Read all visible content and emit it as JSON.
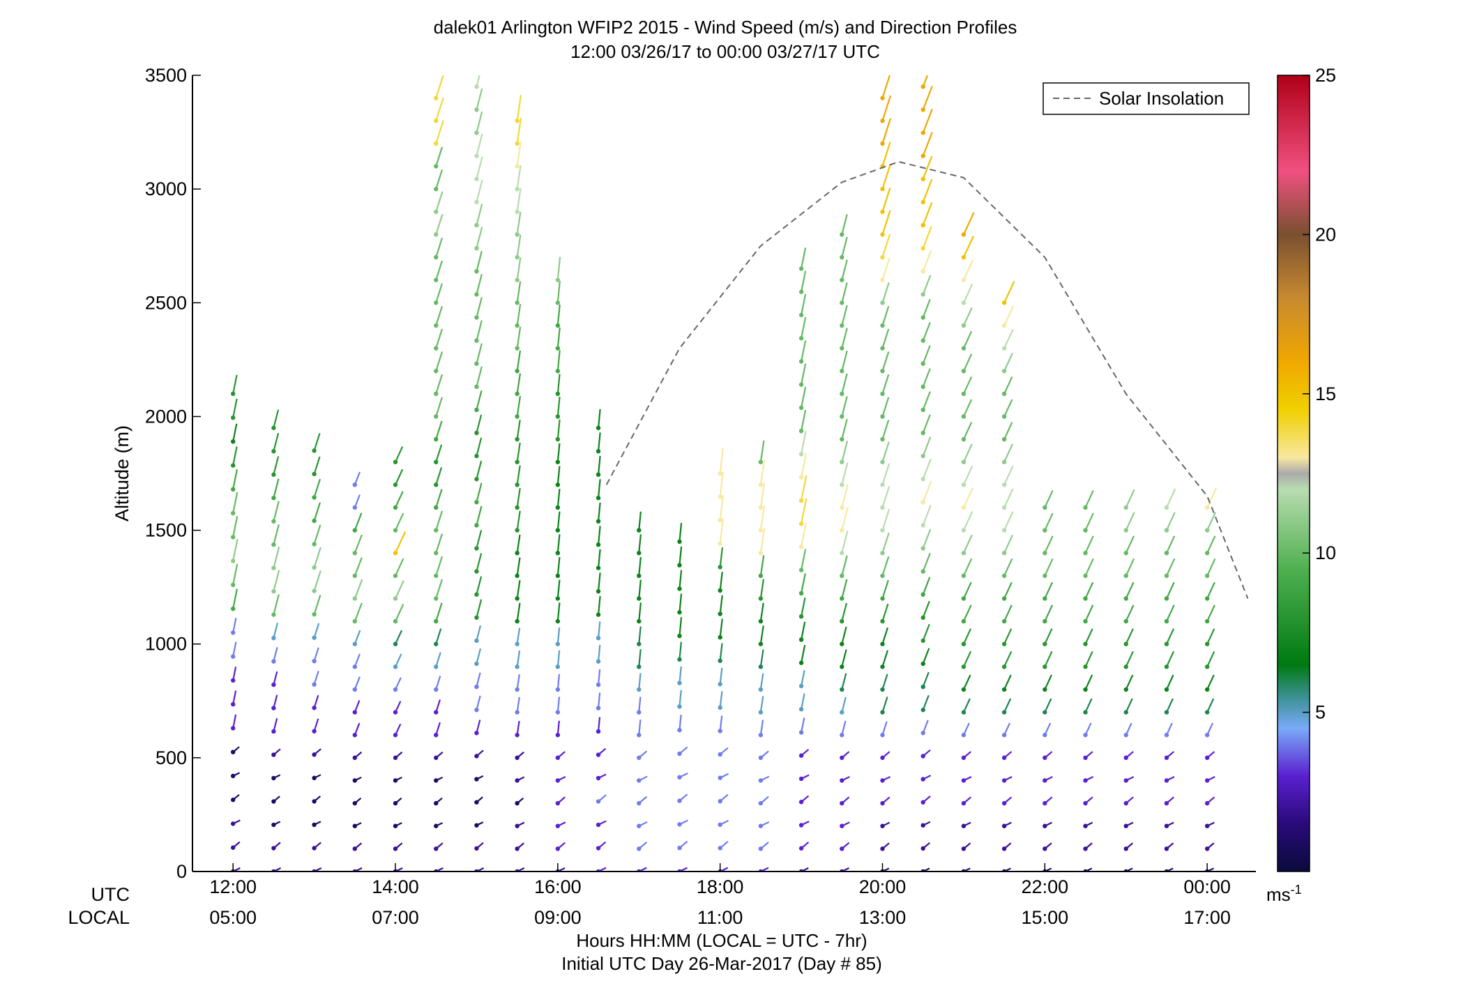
{
  "chart_data": {
    "type": "scatter",
    "title": "dalek01 Arlington WFIP2 2015 - Wind Speed (m/s) and Direction Profiles",
    "subtitle": "12:00 03/26/17 to 00:00 03/27/17  UTC",
    "xlabel": "Hours HH:MM  (LOCAL = UTC - 7hr)",
    "xlabel2": "Initial UTC Day 26-Mar-2017 (Day # 85)",
    "ylabel": "Altitude (m)",
    "x_row_labels": {
      "utc": "UTC",
      "local": "LOCAL"
    },
    "xlim": [
      11.5,
      24.6
    ],
    "ylim": [
      0,
      3500
    ],
    "x_ticks": [
      {
        "value": 12,
        "utc": "12:00",
        "local": "05:00"
      },
      {
        "value": 14,
        "utc": "14:00",
        "local": "07:00"
      },
      {
        "value": 16,
        "utc": "16:00",
        "local": "09:00"
      },
      {
        "value": 18,
        "utc": "18:00",
        "local": "11:00"
      },
      {
        "value": 20,
        "utc": "20:00",
        "local": "13:00"
      },
      {
        "value": 22,
        "utc": "22:00",
        "local": "15:00"
      },
      {
        "value": 24,
        "utc": "00:00",
        "local": "17:00"
      }
    ],
    "y_ticks": [
      {
        "value": 0,
        "label": "0"
      },
      {
        "value": 500,
        "label": "500"
      },
      {
        "value": 1000,
        "label": "1000"
      },
      {
        "value": 1500,
        "label": "1500"
      },
      {
        "value": 2000,
        "label": "2000"
      },
      {
        "value": 2500,
        "label": "2500"
      },
      {
        "value": 3000,
        "label": "3000"
      },
      {
        "value": 3500,
        "label": "3500"
      }
    ],
    "legend": {
      "entry": "Solar Insolation",
      "placement": "top-right"
    },
    "colorbar": {
      "range": [
        0,
        25
      ],
      "unit_label": "ms",
      "unit_exp": "-1",
      "ticks": [
        {
          "value": 5,
          "label": "5"
        },
        {
          "value": 10,
          "label": "10"
        },
        {
          "value": 15,
          "label": "15"
        },
        {
          "value": 20,
          "label": "20"
        },
        {
          "value": 25,
          "label": "25"
        }
      ],
      "stops": [
        {
          "value": 0,
          "color": "#0a0a3c"
        },
        {
          "value": 1.5,
          "color": "#2a0a7a"
        },
        {
          "value": 3,
          "color": "#5a20d0"
        },
        {
          "value": 4.5,
          "color": "#7aaaf8"
        },
        {
          "value": 5.5,
          "color": "#3a9090"
        },
        {
          "value": 6.5,
          "color": "#007a10"
        },
        {
          "value": 9.5,
          "color": "#50b050"
        },
        {
          "value": 12,
          "color": "#b8dcb0"
        },
        {
          "value": 12.5,
          "color": "#aaaaaa"
        },
        {
          "value": 13,
          "color": "#f8e8a0"
        },
        {
          "value": 14.5,
          "color": "#f0d000"
        },
        {
          "value": 16,
          "color": "#f0a800"
        },
        {
          "value": 18,
          "color": "#c88a30"
        },
        {
          "value": 20,
          "color": "#7a5030"
        },
        {
          "value": 22,
          "color": "#f05080"
        },
        {
          "value": 25,
          "color": "#b00018"
        }
      ]
    },
    "solar_insolation": {
      "style": "dashed",
      "color": "#666666",
      "points": [
        [
          16.6,
          1700
        ],
        [
          17.5,
          2300
        ],
        [
          18.5,
          2750
        ],
        [
          19.5,
          3030
        ],
        [
          20.2,
          3120
        ],
        [
          21.0,
          3050
        ],
        [
          22.0,
          2700
        ],
        [
          23.0,
          2100
        ],
        [
          24.0,
          1650
        ],
        [
          24.5,
          1200
        ]
      ]
    },
    "profiles": [
      {
        "t": 12.0,
        "top": 2100,
        "dir": 20,
        "speed": [
          2,
          2,
          2,
          1,
          1,
          1,
          3,
          3,
          3,
          4,
          4,
          9,
          10,
          11,
          10,
          10,
          9,
          8,
          7,
          8,
          8
        ]
      },
      {
        "t": 12.5,
        "top": 1950,
        "dir": 25,
        "speed": [
          2,
          2,
          1,
          1,
          1,
          2,
          3,
          3,
          3,
          4,
          5,
          10,
          11,
          11,
          10,
          10,
          9,
          8,
          8,
          8
        ]
      },
      {
        "t": 13.0,
        "top": 1850,
        "dir": 30,
        "speed": [
          2,
          2,
          1,
          1,
          1,
          2,
          3,
          3,
          4,
          4,
          5,
          10,
          11,
          11,
          10,
          9,
          9,
          8,
          8
        ]
      },
      {
        "t": 13.5,
        "top": 1700,
        "dir": 35,
        "speed": [
          2,
          2,
          1,
          1,
          1,
          2,
          3,
          3,
          4,
          4,
          5,
          10,
          11,
          10,
          10,
          9,
          4,
          4
        ]
      },
      {
        "t": 14.0,
        "top": 1800,
        "dir": 40,
        "speed": [
          2,
          2,
          1,
          1,
          1,
          2,
          3,
          3,
          4,
          5,
          6,
          10,
          11,
          10,
          15,
          10,
          9,
          8,
          8
        ]
      },
      {
        "t": 14.5,
        "top": 3400,
        "dir": 30,
        "speed": [
          2,
          2,
          1,
          1,
          1,
          2,
          3,
          3,
          4,
          5,
          6,
          9,
          10,
          10,
          10,
          10,
          9,
          8,
          8,
          9,
          10,
          10,
          10,
          10,
          10,
          10,
          10,
          10,
          11,
          11,
          10,
          10,
          14,
          14,
          14
        ]
      },
      {
        "t": 15.0,
        "top": 3450,
        "dir": 25,
        "speed": [
          2,
          2,
          1,
          1,
          1,
          2,
          3,
          4,
          4,
          5,
          5,
          8,
          8,
          8,
          8,
          9,
          9,
          8,
          8,
          8,
          9,
          10,
          10,
          10,
          10,
          10,
          10,
          11,
          11,
          12,
          12,
          12,
          11,
          11,
          12
        ]
      },
      {
        "t": 15.5,
        "top": 3300,
        "dir": 15,
        "speed": [
          2,
          2,
          2,
          1,
          2,
          2,
          3,
          4,
          4,
          5,
          5,
          7,
          7,
          7,
          7,
          8,
          8,
          8,
          8,
          8,
          9,
          9,
          9,
          10,
          10,
          10,
          11,
          11,
          11,
          12,
          12,
          13,
          14,
          14
        ]
      },
      {
        "t": 16.0,
        "top": 2600,
        "dir": 10,
        "speed": [
          2,
          3,
          3,
          3,
          3,
          3,
          3,
          4,
          4,
          5,
          5,
          7,
          7,
          7,
          7,
          7,
          7,
          7,
          7,
          8,
          8,
          8,
          9,
          9,
          9,
          10,
          11
        ]
      },
      {
        "t": 16.5,
        "top": 1950,
        "dir": 10,
        "speed": [
          3,
          3,
          3,
          4,
          3,
          3,
          3,
          4,
          4,
          5,
          5,
          7,
          7,
          7,
          7,
          7,
          7,
          7,
          7,
          7
        ]
      },
      {
        "t": 17.0,
        "top": 1500,
        "dir": 10,
        "speed": [
          3,
          4,
          4,
          4,
          4,
          4,
          4,
          4,
          5,
          6,
          6,
          7,
          7,
          7,
          7,
          7
        ]
      },
      {
        "t": 17.5,
        "top": 1450,
        "dir": 10,
        "speed": [
          3,
          4,
          4,
          4,
          4,
          4,
          4,
          5,
          5,
          6,
          7,
          7,
          7,
          7,
          7
        ]
      },
      {
        "t": 18.0,
        "top": 1750,
        "dir": 12,
        "speed": [
          3,
          4,
          4,
          4,
          4,
          4,
          4,
          5,
          5,
          6,
          7,
          7,
          7,
          8,
          13,
          13,
          13,
          13
        ]
      },
      {
        "t": 18.5,
        "top": 1800,
        "dir": 15,
        "speed": [
          3,
          4,
          4,
          4,
          4,
          4,
          4,
          5,
          5,
          6,
          7,
          7,
          8,
          9,
          13,
          13,
          13,
          13,
          10
        ]
      },
      {
        "t": 19.0,
        "top": 2650,
        "dir": 20,
        "speed": [
          2,
          3,
          3,
          3,
          3,
          3,
          4,
          5,
          5,
          7,
          7,
          8,
          9,
          10,
          13,
          14,
          14,
          13,
          12,
          10,
          10,
          10,
          10,
          10,
          10,
          10,
          10
        ]
      },
      {
        "t": 19.5,
        "top": 2800,
        "dir": 25,
        "speed": [
          2,
          3,
          3,
          3,
          3,
          3,
          4,
          5,
          6,
          7,
          7,
          8,
          9,
          10,
          12,
          13,
          13,
          12,
          11,
          10,
          10,
          10,
          10,
          10,
          10,
          10,
          10,
          10,
          10
        ]
      },
      {
        "t": 20.0,
        "top": 3400,
        "dir": 30,
        "speed": [
          1,
          2,
          2,
          3,
          3,
          3,
          4,
          6,
          6,
          7,
          7,
          8,
          9,
          10,
          11,
          12,
          12,
          12,
          11,
          10,
          10,
          10,
          10,
          10,
          10,
          11,
          13,
          14,
          15,
          15,
          15,
          15,
          16,
          16,
          16
        ]
      },
      {
        "t": 20.5,
        "top": 3450,
        "dir": 35,
        "speed": [
          1,
          2,
          2,
          3,
          3,
          3,
          4,
          6,
          6,
          7,
          8,
          8,
          9,
          10,
          11,
          12,
          13,
          12,
          11,
          10,
          10,
          10,
          10,
          10,
          10,
          11,
          13,
          14,
          15,
          15,
          15,
          16,
          16,
          16,
          16
        ]
      },
      {
        "t": 21.0,
        "top": 2800,
        "dir": 40,
        "speed": [
          1,
          2,
          2,
          3,
          3,
          3,
          4,
          6,
          7,
          8,
          8,
          9,
          9,
          10,
          11,
          12,
          13,
          12,
          11,
          10,
          10,
          10,
          10,
          10,
          11,
          12,
          13,
          15,
          16
        ]
      },
      {
        "t": 21.5,
        "top": 2500,
        "dir": 40,
        "speed": [
          1,
          2,
          2,
          3,
          3,
          3,
          4,
          6,
          7,
          8,
          8,
          9,
          9,
          10,
          11,
          12,
          12,
          12,
          11,
          10,
          10,
          10,
          11,
          12,
          13,
          15
        ]
      },
      {
        "t": 22.0,
        "top": 1600,
        "dir": 40,
        "speed": [
          1,
          2,
          2,
          3,
          3,
          3,
          4,
          6,
          7,
          8,
          8,
          9,
          9,
          10,
          10,
          10,
          10
        ]
      },
      {
        "t": 22.5,
        "top": 1600,
        "dir": 40,
        "speed": [
          1,
          2,
          2,
          3,
          3,
          3,
          4,
          6,
          7,
          8,
          8,
          9,
          9,
          10,
          10,
          10,
          10
        ]
      },
      {
        "t": 23.0,
        "top": 1600,
        "dir": 40,
        "speed": [
          1,
          2,
          2,
          3,
          3,
          3,
          4,
          6,
          7,
          8,
          8,
          9,
          9,
          10,
          10,
          11,
          11
        ]
      },
      {
        "t": 23.5,
        "top": 1600,
        "dir": 40,
        "speed": [
          1,
          2,
          2,
          3,
          3,
          3,
          4,
          6,
          7,
          8,
          8,
          9,
          9,
          10,
          10,
          11,
          12
        ]
      },
      {
        "t": 24.0,
        "top": 1600,
        "dir": 40,
        "speed": [
          1,
          2,
          2,
          3,
          3,
          3,
          4,
          6,
          7,
          8,
          8,
          9,
          9,
          10,
          10,
          11,
          13
        ]
      }
    ]
  }
}
